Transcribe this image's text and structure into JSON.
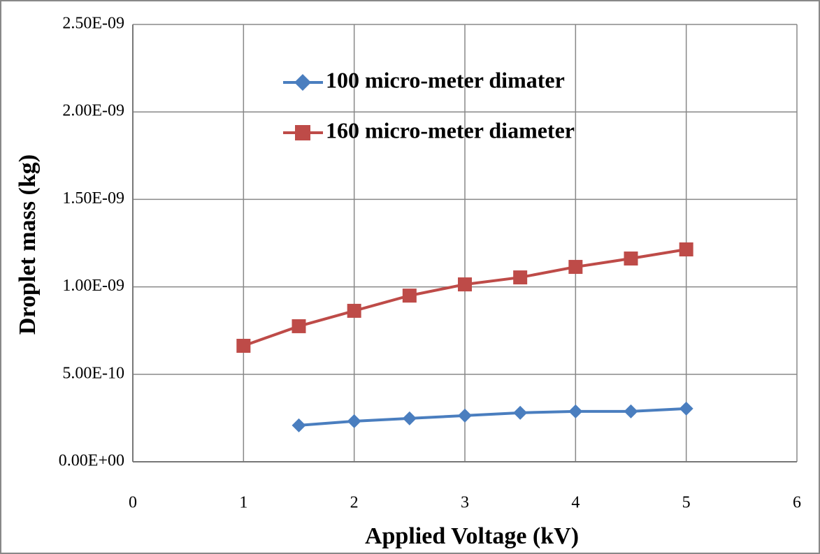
{
  "chart_data": {
    "type": "line",
    "xlabel": "Applied Voltage (kV)",
    "ylabel": "Droplet mass (kg)",
    "xlim": [
      0,
      6
    ],
    "xticks": [
      0,
      1,
      2,
      3,
      4,
      5,
      6
    ],
    "ylim": [
      0,
      2.5e-09
    ],
    "yticks": [
      {
        "value": 0,
        "label": "0.00E+00"
      },
      {
        "value": 5e-10,
        "label": "5.00E-10"
      },
      {
        "value": 1e-09,
        "label": "1.00E-09"
      },
      {
        "value": 1.5e-09,
        "label": "1.50E-09"
      },
      {
        "value": 2e-09,
        "label": "2.00E-09"
      },
      {
        "value": 2.5e-09,
        "label": "2.50E-09"
      }
    ],
    "grid": true,
    "legend": "top",
    "series": [
      {
        "name": "100 micro-meter dimater",
        "color": "#4a7ebf",
        "marker": "diamond",
        "x": [
          1.5,
          2,
          2.5,
          3,
          3.5,
          4,
          4.5,
          5
        ],
        "values": [
          2.08e-10,
          2.32e-10,
          2.48e-10,
          2.64e-10,
          2.8e-10,
          2.88e-10,
          2.88e-10,
          3.04e-10
        ]
      },
      {
        "name": "160 micro-meter diameter",
        "color": "#be4b48",
        "marker": "square",
        "x": [
          1,
          1.5,
          2,
          2.5,
          3,
          3.5,
          4,
          4.5,
          5
        ],
        "values": [
          6.63e-10,
          7.75e-10,
          8.63e-10,
          9.5e-10,
          1.014e-09,
          1.054e-09,
          1.114e-09,
          1.162e-09,
          1.214e-09
        ]
      }
    ]
  }
}
